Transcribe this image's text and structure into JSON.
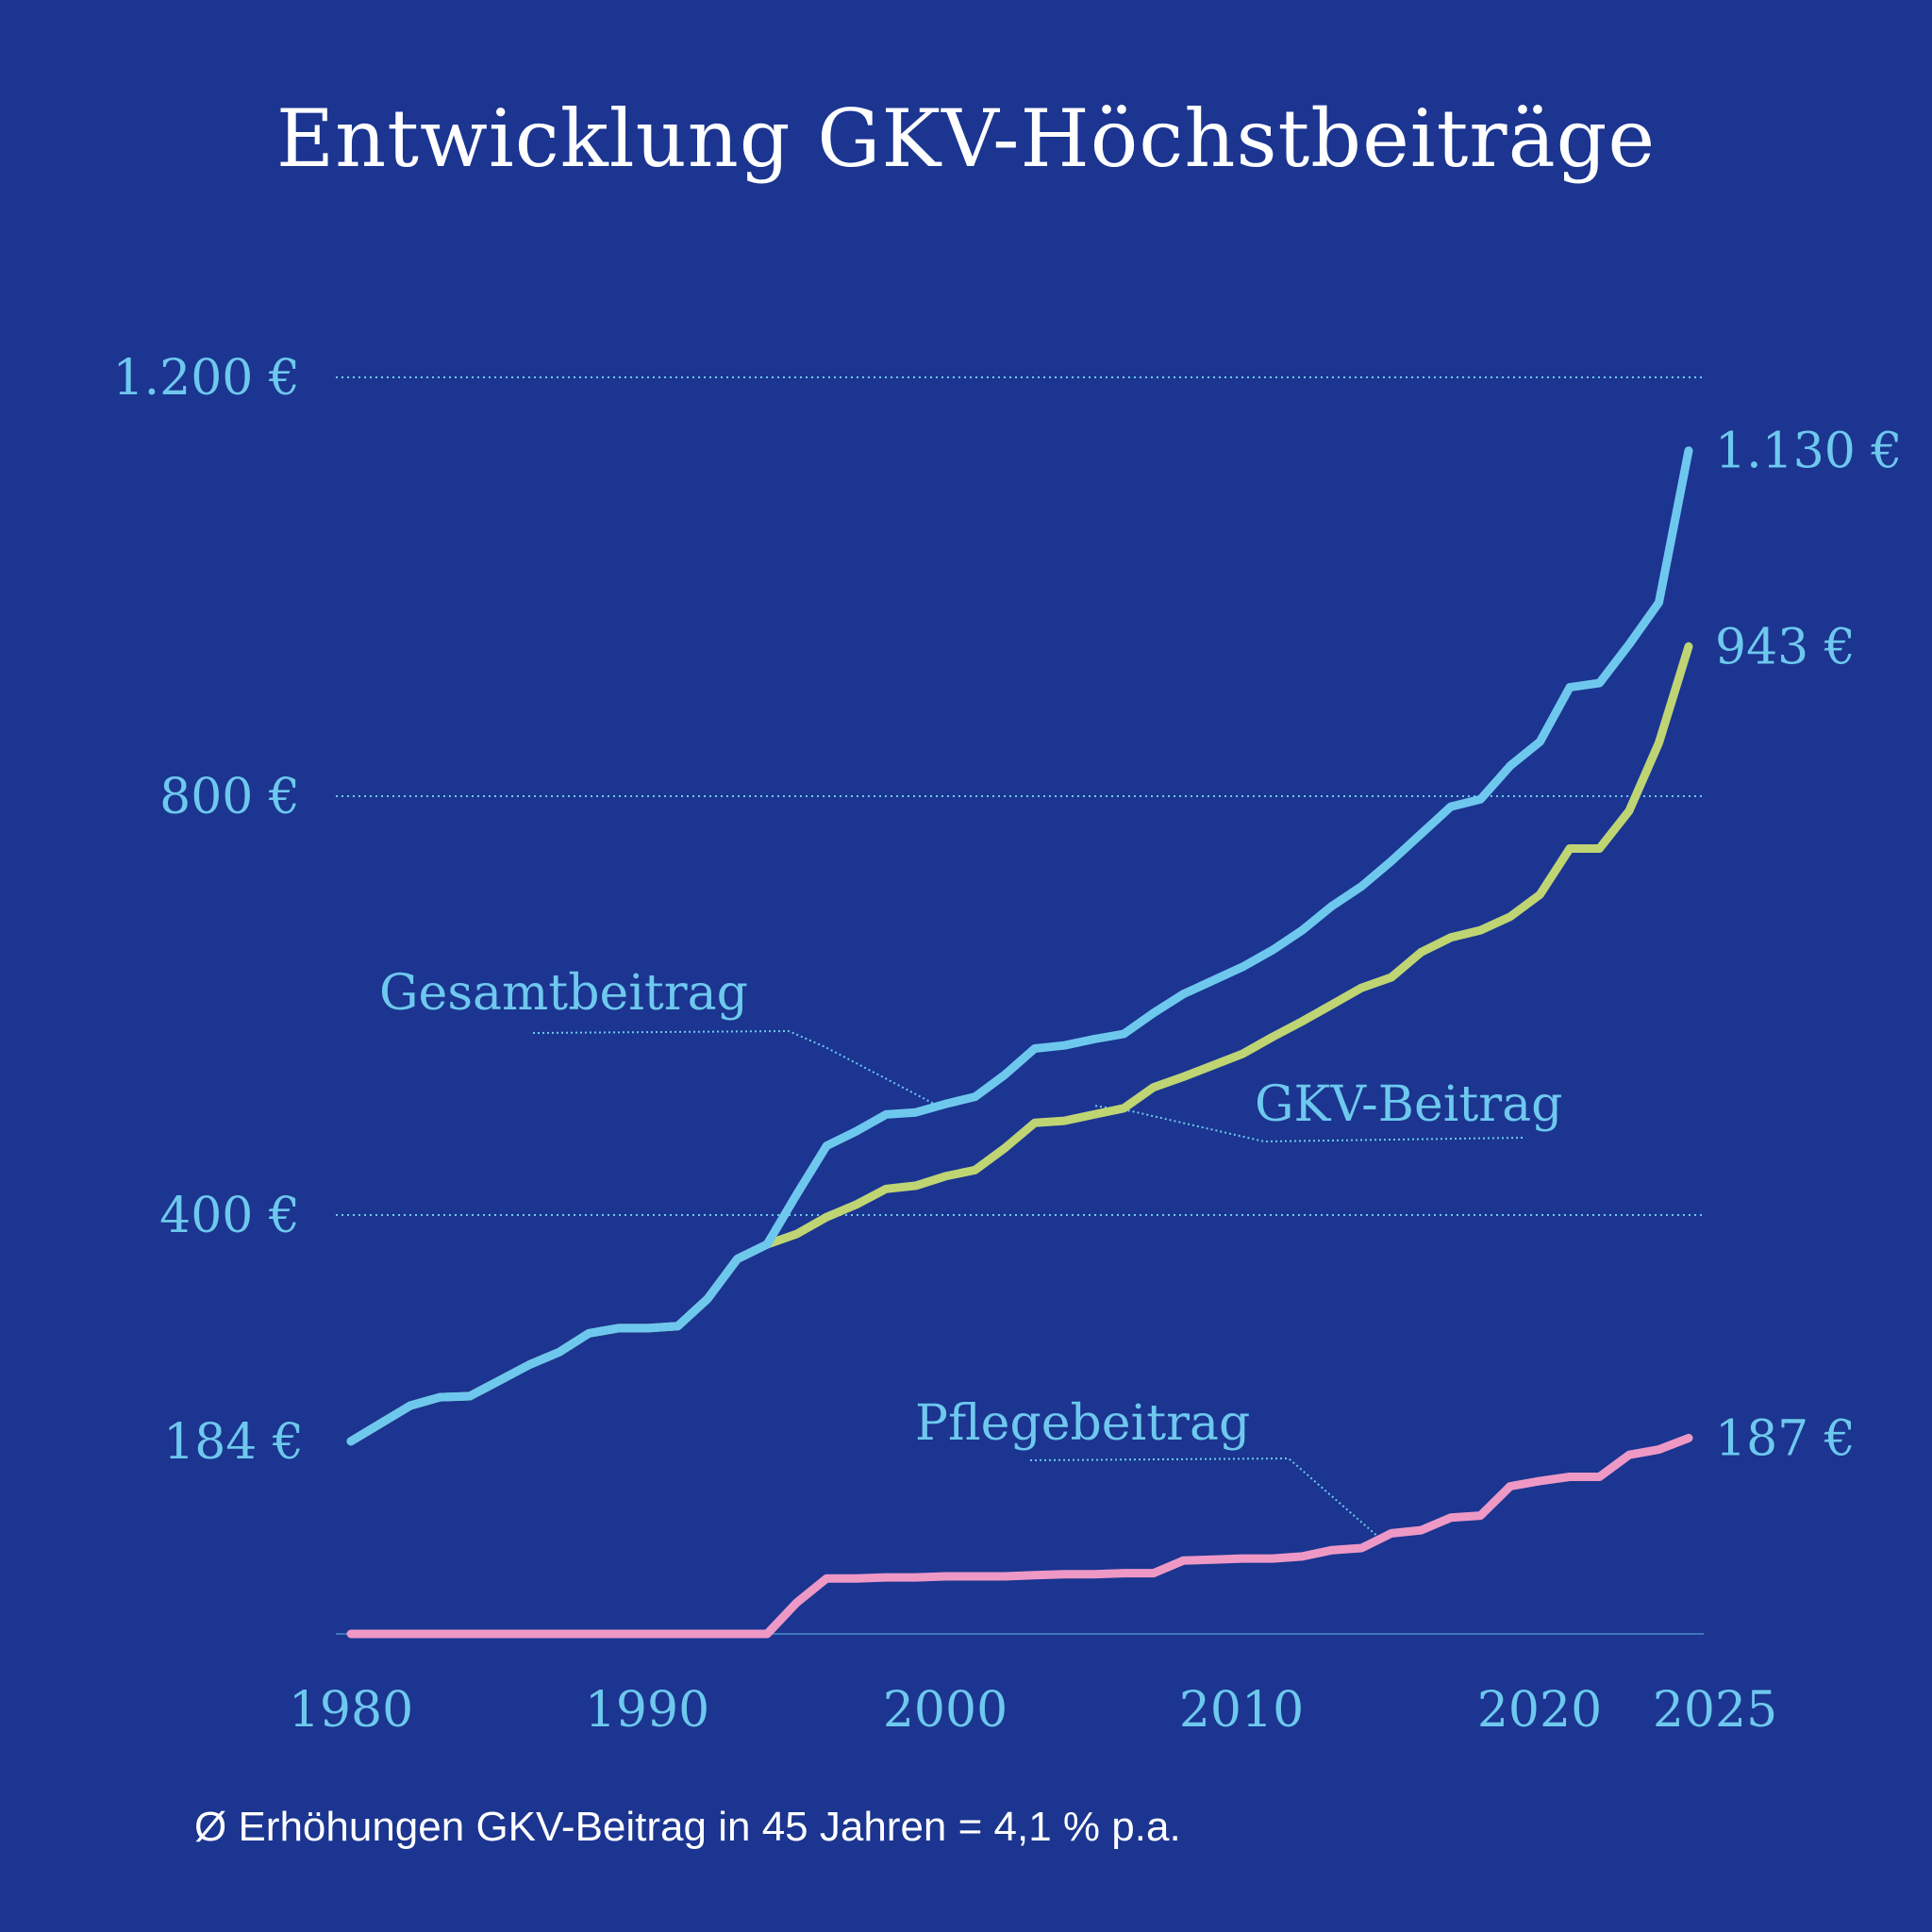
{
  "chart_data": {
    "type": "line",
    "title": "Entwicklung GKV-Höchstbeiträge",
    "xlabel": "",
    "ylabel": "",
    "xlim": [
      1980,
      2025
    ],
    "ylim": [
      0,
      1200
    ],
    "x_ticks": [
      1980,
      1990,
      2000,
      2010,
      2020,
      2025
    ],
    "x_tick_labels": [
      "1980",
      "1990",
      "2000",
      "2010",
      "2020",
      "2025"
    ],
    "y_ticks": [
      400,
      800,
      1200
    ],
    "y_tick_labels": [
      "400 €",
      "800 €",
      "1.200 €"
    ],
    "y_marked_start": {
      "value": 184,
      "label": "184 €"
    },
    "grid": "dotted horizontal at 400, 800, 1200",
    "x": [
      1980,
      1981,
      1982,
      1983,
      1984,
      1985,
      1986,
      1987,
      1988,
      1989,
      1990,
      1991,
      1992,
      1993,
      1994,
      1995,
      1996,
      1997,
      1998,
      1999,
      2000,
      2001,
      2002,
      2003,
      2004,
      2005,
      2006,
      2007,
      2008,
      2009,
      2010,
      2011,
      2012,
      2013,
      2014,
      2015,
      2016,
      2017,
      2018,
      2019,
      2020,
      2021,
      2022,
      2023,
      2024,
      2025
    ],
    "series": [
      {
        "name": "Gesamtbeitrag",
        "color": "#6ec8ee",
        "end_label": "1.130 €",
        "values": [
          184,
          201,
          218,
          226,
          227,
          242,
          257,
          269,
          287,
          292,
          292,
          294,
          320,
          358,
          372,
          420,
          466,
          480,
          496,
          498,
          506,
          513,
          534,
          559,
          562,
          568,
          573,
          593,
          611,
          624,
          637,
          653,
          672,
          695,
          714,
          738,
          764,
          790,
          797,
          829,
          852,
          904,
          908,
          945,
          985,
          1130
        ]
      },
      {
        "name": "GKV-Beitrag",
        "color": "#bfd473",
        "end_label": "943 €",
        "values": [
          184,
          201,
          218,
          226,
          227,
          242,
          257,
          269,
          287,
          292,
          292,
          294,
          320,
          358,
          372,
          382,
          398,
          410,
          425,
          428,
          437,
          443,
          464,
          488,
          490,
          496,
          502,
          522,
          532,
          543,
          554,
          570,
          585,
          601,
          617,
          627,
          651,
          665,
          672,
          685,
          706,
          750,
          750,
          786,
          851,
          943
        ]
      },
      {
        "name": "Pflegebeitrag",
        "color": "#ee98c6",
        "end_label": "187 €",
        "values": [
          0,
          0,
          0,
          0,
          0,
          0,
          0,
          0,
          0,
          0,
          0,
          0,
          0,
          0,
          0,
          30,
          53,
          53,
          54,
          54,
          55,
          55,
          55,
          56,
          57,
          57,
          58,
          58,
          70,
          71,
          72,
          72,
          74,
          80,
          82,
          96,
          99,
          111,
          113,
          141,
          146,
          150,
          150,
          171,
          176,
          187
        ]
      }
    ],
    "annotations": [
      "Gesamtbeitrag",
      "GKV-Beitrag",
      "Pflegebeitrag"
    ]
  },
  "footnote": "Ø Erhöhungen GKV-Beitrag in 45 Jahren = 4,1 % p.a.",
  "colors": {
    "background": "#1b3590",
    "label": "#6ec8ee",
    "title": "#ffffff"
  }
}
